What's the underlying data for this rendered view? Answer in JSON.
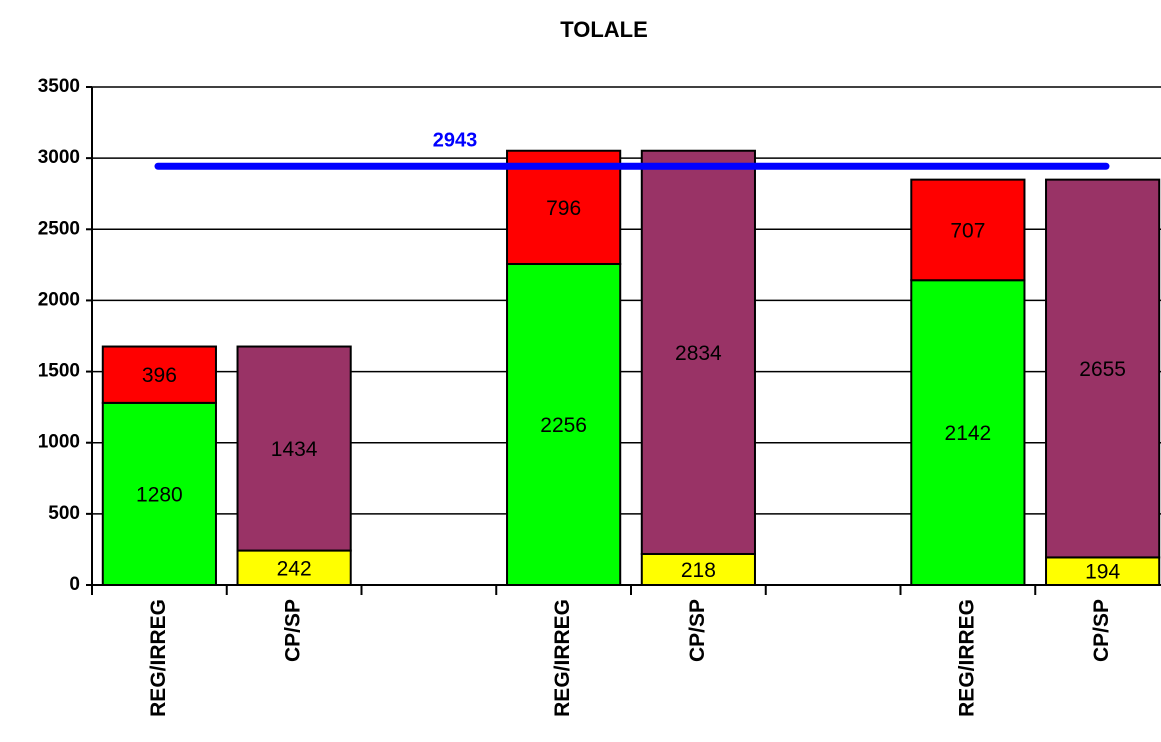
{
  "chart_data": {
    "type": "stacked_bar",
    "title": "TOLALE",
    "categories": [
      "REG/IRREG",
      "CP/SP",
      null,
      "REG/IRREG",
      "CP/SP",
      null,
      "REG/IRREG",
      "CP/SP"
    ],
    "series": [
      {
        "color": "#00ff00",
        "values": [
          1280,
          null,
          null,
          2256,
          null,
          null,
          2142,
          null
        ]
      },
      {
        "color": "#ff0000",
        "values": [
          396,
          null,
          null,
          796,
          null,
          null,
          707,
          null
        ]
      },
      {
        "color": "#ffff00",
        "values": [
          null,
          242,
          null,
          null,
          218,
          null,
          null,
          194
        ]
      },
      {
        "color": "#993366",
        "values": [
          null,
          1434,
          null,
          null,
          2834,
          null,
          null,
          2655
        ]
      }
    ],
    "reference_line": {
      "value": 2943,
      "color": "#0000ff"
    },
    "ylim": [
      0,
      3500
    ],
    "yticks": [
      0,
      500,
      1000,
      1500,
      2000,
      2500,
      3000,
      3500
    ],
    "grid": true
  }
}
